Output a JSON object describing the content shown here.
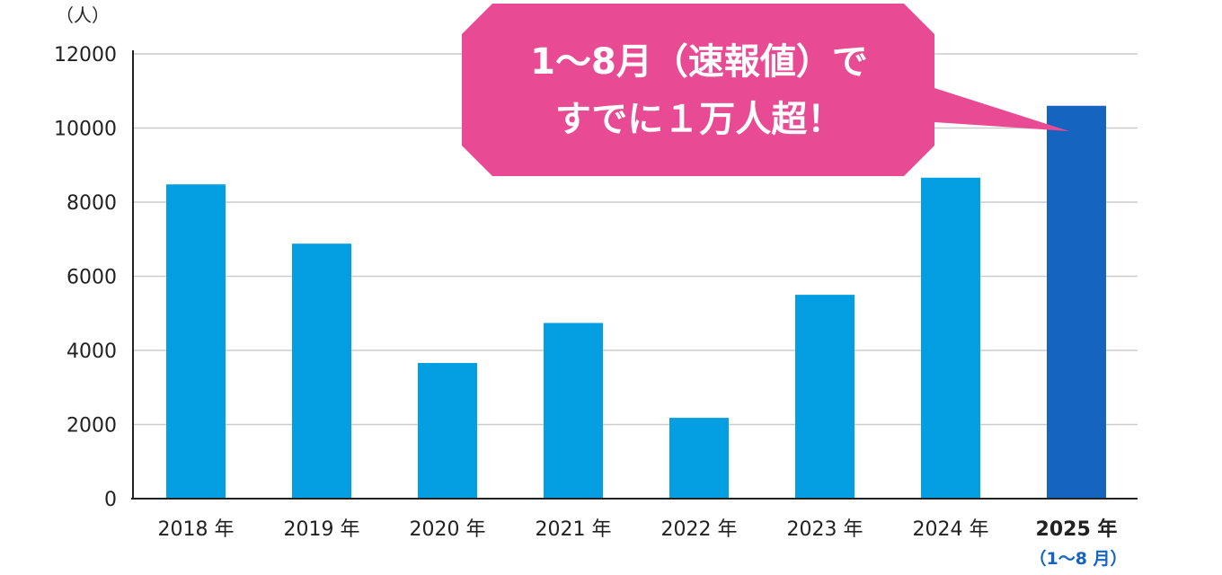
{
  "chart_data": {
    "type": "bar",
    "unit_label": "（人）",
    "categories": [
      "2018 年",
      "2019 年",
      "2020 年",
      "2021 年",
      "2022 年",
      "2023 年",
      "2024 年",
      "2025 年"
    ],
    "highlight_sublabel": "（1〜8 月）",
    "values": [
      8480,
      6880,
      3660,
      4740,
      2180,
      5500,
      8660,
      10600
    ],
    "ylim": [
      0,
      12000
    ],
    "yticks": [
      "0",
      "2000",
      "4000",
      "6000",
      "8000",
      "10000",
      "12000"
    ],
    "grid": true,
    "highlight_index": 7,
    "colors": {
      "bar": "#049fe3",
      "highlight": "#1565c0",
      "grid": "#cccccc",
      "axis": "#222222",
      "callout": "#e84a93"
    },
    "callout": {
      "line1": "1〜8月（速報値）で",
      "line2": "すでに１万人超！"
    }
  }
}
